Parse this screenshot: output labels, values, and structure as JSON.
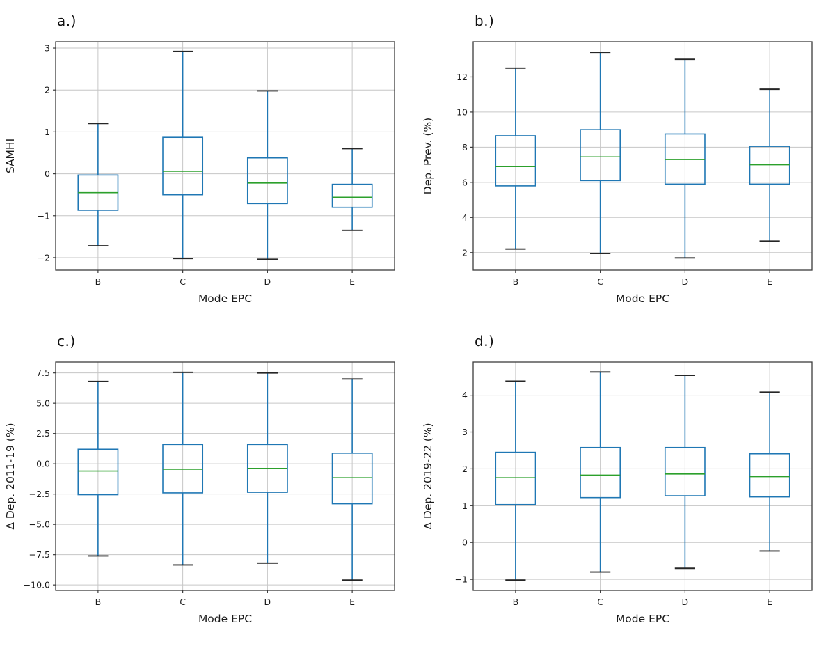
{
  "page": {
    "background": "#ffffff"
  },
  "style": {
    "box_color": "#1f77b4",
    "whisker_color": "#1f77b4",
    "median_color": "#2ca02c",
    "cap_color": "#262626",
    "grid_color": "#c6c6c6",
    "spine_color": "#3c3c3c",
    "text_color": "#1a1a1a"
  },
  "chart_data": [
    {
      "type": "boxplot",
      "panel_label": "a.)",
      "xlabel": "Mode EPC",
      "ylabel": "SAMHI",
      "categories": [
        "B",
        "C",
        "D",
        "E"
      ],
      "ylim": [
        -2.3,
        3.15
      ],
      "ytick_values": [
        -2,
        -1,
        0,
        1,
        2,
        3
      ],
      "ytick_labels": [
        "−2",
        "−1",
        "0",
        "1",
        "2",
        "3"
      ],
      "grid": true,
      "legend": "none",
      "boxes": [
        {
          "category": "B",
          "whisker_low": -1.72,
          "q1": -0.87,
          "median": -0.45,
          "q3": -0.03,
          "whisker_high": 1.2
        },
        {
          "category": "C",
          "whisker_low": -2.02,
          "q1": -0.5,
          "median": 0.06,
          "q3": 0.87,
          "whisker_high": 2.92
        },
        {
          "category": "D",
          "whisker_low": -2.04,
          "q1": -0.71,
          "median": -0.22,
          "q3": 0.38,
          "whisker_high": 1.98
        },
        {
          "category": "E",
          "whisker_low": -1.35,
          "q1": -0.8,
          "median": -0.56,
          "q3": -0.25,
          "whisker_high": 0.6
        }
      ]
    },
    {
      "type": "boxplot",
      "panel_label": "b.)",
      "xlabel": "Mode EPC",
      "ylabel": "Dep. Prev. (%)",
      "categories": [
        "B",
        "C",
        "D",
        "E"
      ],
      "ylim": [
        1.0,
        14.0
      ],
      "ytick_values": [
        2,
        4,
        6,
        8,
        10,
        12
      ],
      "ytick_labels": [
        "2",
        "4",
        "6",
        "8",
        "10",
        "12"
      ],
      "grid": true,
      "legend": "none",
      "boxes": [
        {
          "category": "B",
          "whisker_low": 2.2,
          "q1": 5.8,
          "median": 6.9,
          "q3": 8.65,
          "whisker_high": 12.5
        },
        {
          "category": "C",
          "whisker_low": 1.95,
          "q1": 6.1,
          "median": 7.45,
          "q3": 9.0,
          "whisker_high": 13.4
        },
        {
          "category": "D",
          "whisker_low": 1.7,
          "q1": 5.9,
          "median": 7.3,
          "q3": 8.75,
          "whisker_high": 13.0
        },
        {
          "category": "E",
          "whisker_low": 2.65,
          "q1": 5.9,
          "median": 7.0,
          "q3": 8.05,
          "whisker_high": 11.3
        }
      ]
    },
    {
      "type": "boxplot",
      "panel_label": "c.)",
      "xlabel": "Mode EPC",
      "ylabel": "Δ Dep. 2011-19 (%)",
      "categories": [
        "B",
        "C",
        "D",
        "E"
      ],
      "ylim": [
        -10.45,
        8.4
      ],
      "ytick_values": [
        7.5,
        5.0,
        2.5,
        0.0,
        -2.5,
        -5.0,
        -7.5,
        -10.0
      ],
      "ytick_labels": [
        "7.5",
        "5.0",
        "2.5",
        "0.0",
        "−2.5",
        "−5.0",
        "−7.5",
        "−10.0"
      ],
      "grid": true,
      "legend": "none",
      "boxes": [
        {
          "category": "B",
          "whisker_low": -7.6,
          "q1": -2.55,
          "median": -0.6,
          "q3": 1.2,
          "whisker_high": 6.8
        },
        {
          "category": "C",
          "whisker_low": -8.35,
          "q1": -2.4,
          "median": -0.45,
          "q3": 1.6,
          "whisker_high": 7.55
        },
        {
          "category": "D",
          "whisker_low": -8.2,
          "q1": -2.35,
          "median": -0.38,
          "q3": 1.6,
          "whisker_high": 7.5
        },
        {
          "category": "E",
          "whisker_low": -9.6,
          "q1": -3.3,
          "median": -1.15,
          "q3": 0.88,
          "whisker_high": 7.0
        }
      ]
    },
    {
      "type": "boxplot",
      "panel_label": "d.)",
      "xlabel": "Mode EPC",
      "ylabel": "Δ Dep. 2019-22 (%)",
      "categories": [
        "B",
        "C",
        "D",
        "E"
      ],
      "ylim": [
        -1.3,
        4.9
      ],
      "ytick_values": [
        -1,
        0,
        1,
        2,
        3,
        4
      ],
      "ytick_labels": [
        "−1",
        "0",
        "1",
        "2",
        "3",
        "4"
      ],
      "grid": true,
      "legend": "none",
      "boxes": [
        {
          "category": "B",
          "whisker_low": -1.02,
          "q1": 1.03,
          "median": 1.76,
          "q3": 2.45,
          "whisker_high": 4.38
        },
        {
          "category": "C",
          "whisker_low": -0.8,
          "q1": 1.22,
          "median": 1.83,
          "q3": 2.58,
          "whisker_high": 4.63
        },
        {
          "category": "D",
          "whisker_low": -0.7,
          "q1": 1.27,
          "median": 1.86,
          "q3": 2.58,
          "whisker_high": 4.54
        },
        {
          "category": "E",
          "whisker_low": -0.23,
          "q1": 1.24,
          "median": 1.79,
          "q3": 2.41,
          "whisker_high": 4.08
        }
      ]
    }
  ]
}
